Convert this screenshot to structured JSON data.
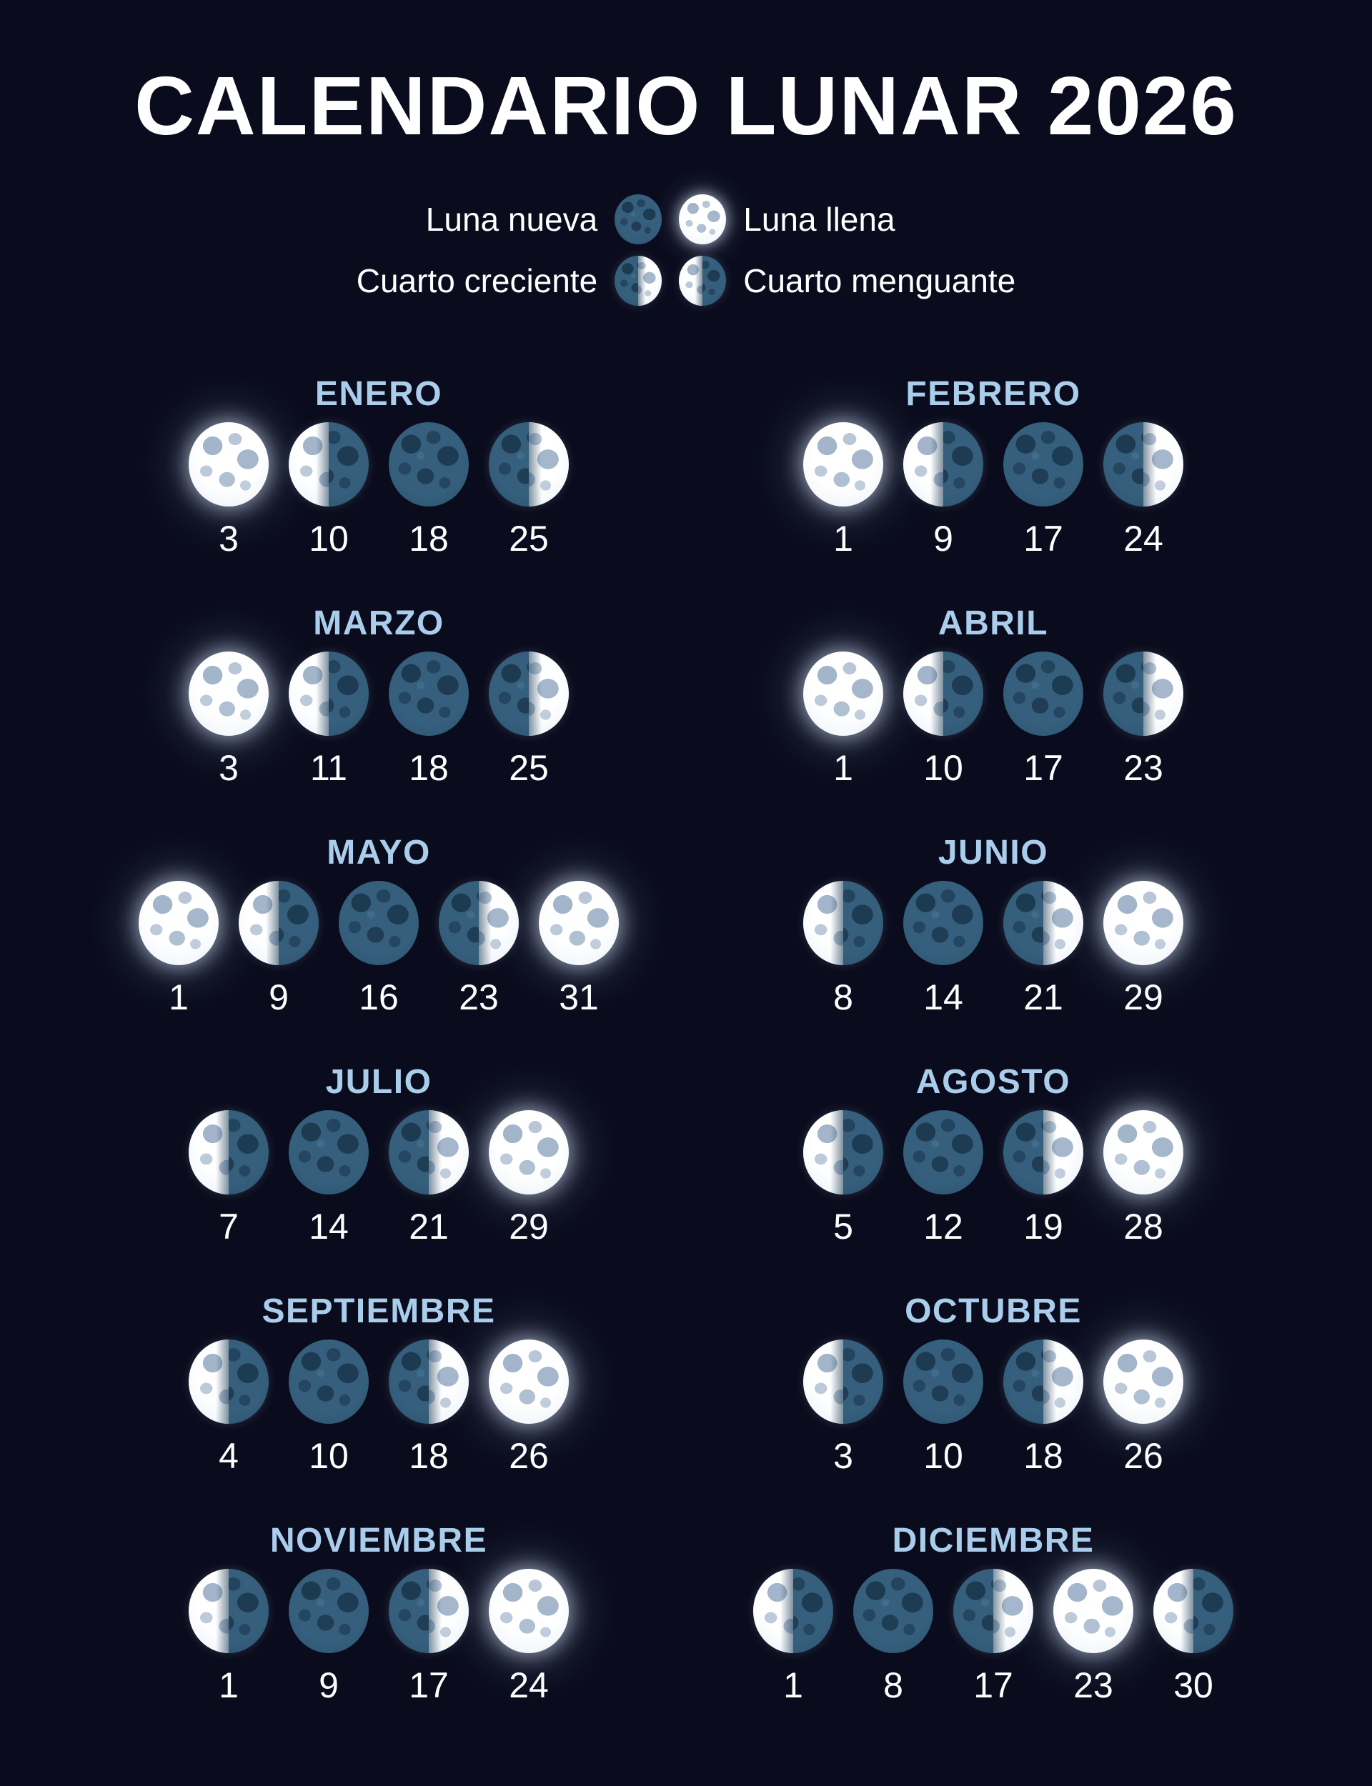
{
  "title": "CALENDARIO LUNAR 2026",
  "legend": {
    "luna_nueva": "Luna nueva",
    "luna_llena": "Luna llena",
    "cuarto_creciente": "Cuarto creciente",
    "cuarto_menguante": "Cuarto menguante"
  },
  "colors": {
    "background": "#0a0c1d",
    "title": "#ffffff",
    "month_title": "#a9cdeb",
    "date_text": "#ffffff",
    "moon_dark": "#2b5674",
    "moon_light": "#edf2f8"
  },
  "months": [
    {
      "name": "ENERO",
      "phases": [
        {
          "day": 3,
          "phase": "full"
        },
        {
          "day": 10,
          "phase": "last_quarter"
        },
        {
          "day": 18,
          "phase": "new"
        },
        {
          "day": 25,
          "phase": "first_quarter"
        }
      ]
    },
    {
      "name": "FEBRERO",
      "phases": [
        {
          "day": 1,
          "phase": "full"
        },
        {
          "day": 9,
          "phase": "last_quarter"
        },
        {
          "day": 17,
          "phase": "new"
        },
        {
          "day": 24,
          "phase": "first_quarter"
        }
      ]
    },
    {
      "name": "MARZO",
      "phases": [
        {
          "day": 3,
          "phase": "full"
        },
        {
          "day": 11,
          "phase": "last_quarter"
        },
        {
          "day": 18,
          "phase": "new"
        },
        {
          "day": 25,
          "phase": "first_quarter"
        }
      ]
    },
    {
      "name": "ABRIL",
      "phases": [
        {
          "day": 1,
          "phase": "full"
        },
        {
          "day": 10,
          "phase": "last_quarter"
        },
        {
          "day": 17,
          "phase": "new"
        },
        {
          "day": 23,
          "phase": "first_quarter"
        }
      ]
    },
    {
      "name": "MAYO",
      "phases": [
        {
          "day": 1,
          "phase": "full"
        },
        {
          "day": 9,
          "phase": "last_quarter"
        },
        {
          "day": 16,
          "phase": "new"
        },
        {
          "day": 23,
          "phase": "first_quarter"
        },
        {
          "day": 31,
          "phase": "full"
        }
      ]
    },
    {
      "name": "JUNIO",
      "phases": [
        {
          "day": 8,
          "phase": "last_quarter"
        },
        {
          "day": 14,
          "phase": "new"
        },
        {
          "day": 21,
          "phase": "first_quarter"
        },
        {
          "day": 29,
          "phase": "full"
        }
      ]
    },
    {
      "name": "JULIO",
      "phases": [
        {
          "day": 7,
          "phase": "last_quarter"
        },
        {
          "day": 14,
          "phase": "new"
        },
        {
          "day": 21,
          "phase": "first_quarter"
        },
        {
          "day": 29,
          "phase": "full"
        }
      ]
    },
    {
      "name": "AGOSTO",
      "phases": [
        {
          "day": 5,
          "phase": "last_quarter"
        },
        {
          "day": 12,
          "phase": "new"
        },
        {
          "day": 19,
          "phase": "first_quarter"
        },
        {
          "day": 28,
          "phase": "full"
        }
      ]
    },
    {
      "name": "SEPTIEMBRE",
      "phases": [
        {
          "day": 4,
          "phase": "last_quarter"
        },
        {
          "day": 10,
          "phase": "new"
        },
        {
          "day": 18,
          "phase": "first_quarter"
        },
        {
          "day": 26,
          "phase": "full"
        }
      ]
    },
    {
      "name": "OCTUBRE",
      "phases": [
        {
          "day": 3,
          "phase": "last_quarter"
        },
        {
          "day": 10,
          "phase": "new"
        },
        {
          "day": 18,
          "phase": "first_quarter"
        },
        {
          "day": 26,
          "phase": "full"
        }
      ]
    },
    {
      "name": "NOVIEMBRE",
      "phases": [
        {
          "day": 1,
          "phase": "last_quarter"
        },
        {
          "day": 9,
          "phase": "new"
        },
        {
          "day": 17,
          "phase": "first_quarter"
        },
        {
          "day": 24,
          "phase": "full"
        }
      ]
    },
    {
      "name": "DICIEMBRE",
      "phases": [
        {
          "day": 1,
          "phase": "last_quarter"
        },
        {
          "day": 8,
          "phase": "new"
        },
        {
          "day": 17,
          "phase": "first_quarter"
        },
        {
          "day": 23,
          "phase": "full"
        },
        {
          "day": 30,
          "phase": "last_quarter"
        }
      ]
    }
  ]
}
